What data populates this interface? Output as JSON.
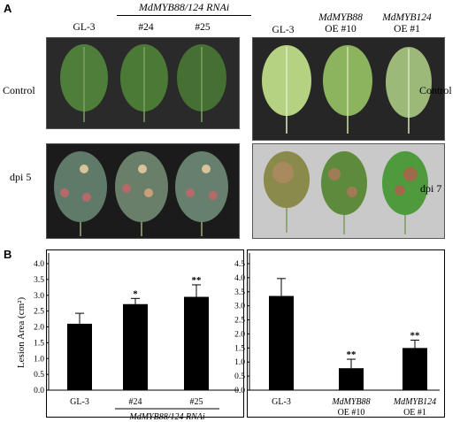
{
  "panel_a": {
    "label": "A",
    "left_group_title": "MdMYB88/124 RNAi",
    "left_columns": [
      "GL-3",
      "#24",
      "#25"
    ],
    "right_columns": [
      {
        "line1": "GL-3",
        "line2": ""
      },
      {
        "line1": "MdMYB88",
        "line2": "OE #10"
      },
      {
        "line1": "MdMYB124",
        "line2": "OE #1"
      }
    ],
    "row_control": "Control",
    "row_dpi5": "dpi 5",
    "row_dpi7": "dpi 7"
  },
  "panel_b": {
    "label": "B"
  },
  "chart_data": [
    {
      "type": "bar",
      "categories": [
        "GL-3",
        "#24",
        "#25"
      ],
      "values": [
        2.1,
        2.72,
        2.95
      ],
      "errors": [
        0.33,
        0.18,
        0.38
      ],
      "significance": [
        "",
        "*",
        "**"
      ],
      "ylabel": "Lesion Area (cm²)",
      "xlabel": "MdMYB88/124 RNAi",
      "ylim": [
        0,
        4.0
      ],
      "yticks": [
        "0.0",
        "0.5",
        "1.0",
        "1.5",
        "2.0",
        "2.5",
        "3.0",
        "3.5",
        "4.0"
      ]
    },
    {
      "type": "bar",
      "categories": [
        "GL-3",
        "MdMYB88|OE #10",
        "MdMYB124|OE #1"
      ],
      "values": [
        3.35,
        0.78,
        1.5
      ],
      "errors": [
        0.62,
        0.32,
        0.28
      ],
      "significance": [
        "",
        "**",
        "**"
      ],
      "ylim": [
        0,
        4.5
      ],
      "yticks": [
        "0.0",
        "0.5",
        "1.0",
        "1.5",
        "2.0",
        "2.5",
        "3.0",
        "3.5",
        "4.0",
        "4.5"
      ]
    }
  ]
}
